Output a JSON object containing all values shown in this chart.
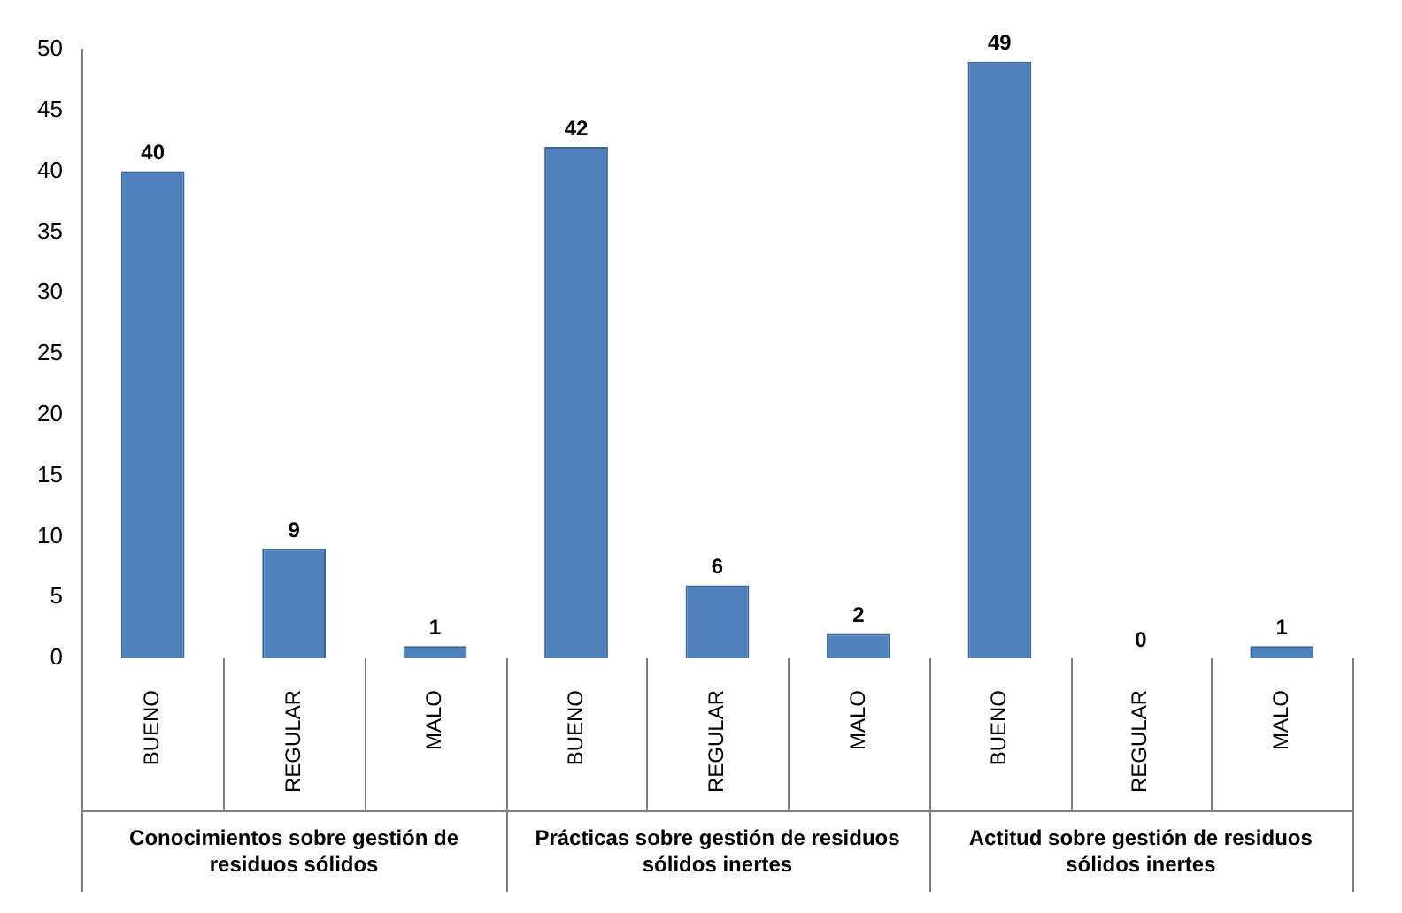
{
  "chart_data": {
    "type": "bar",
    "categories": [
      "BUENO",
      "REGULAR",
      "MALO",
      "BUENO",
      "REGULAR",
      "MALO",
      "BUENO",
      "REGULAR",
      "MALO"
    ],
    "values": [
      40,
      9,
      1,
      42,
      6,
      2,
      49,
      0,
      1
    ],
    "color": "#4f81bd",
    "ylim": [
      0,
      50
    ],
    "yticks": [
      0,
      5,
      10,
      15,
      20,
      25,
      30,
      35,
      40,
      45,
      50
    ],
    "data_labels": true,
    "grid": false,
    "legend": false,
    "annotations": [
      "Conocimientos sobre gestión de residuos sólidos",
      "Prácticas sobre gestión de residuos sólidos inertes",
      "Actitud sobre gestión de residuos sólidos inertes"
    ]
  }
}
